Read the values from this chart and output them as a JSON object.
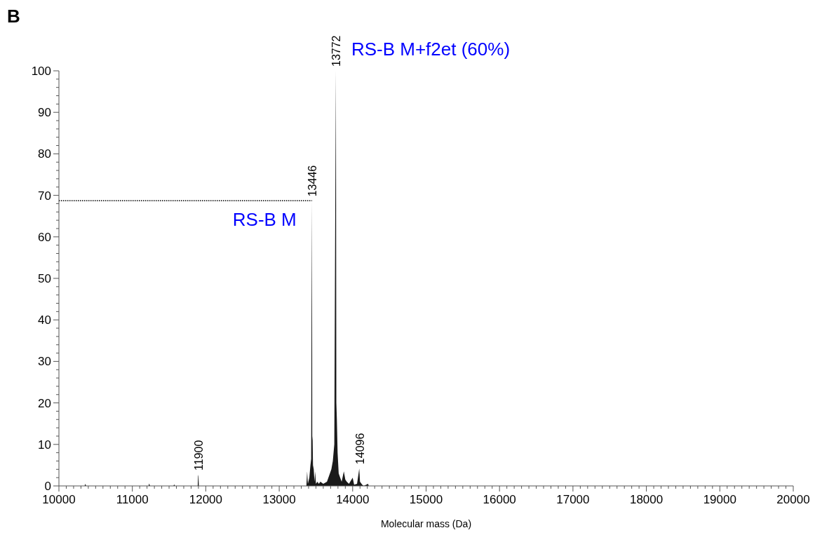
{
  "chart_data": {
    "type": "area",
    "title": "B",
    "xlabel": "Molecular mass (Da)",
    "xlim": [
      10000,
      20000
    ],
    "xticks": [
      10000,
      11000,
      12000,
      13000,
      14000,
      15000,
      16000,
      17000,
      18000,
      19000,
      20000
    ],
    "ylim": [
      0,
      100
    ],
    "yticks": [
      0,
      10,
      20,
      30,
      40,
      50,
      60,
      70,
      80,
      90,
      100
    ],
    "grid": false,
    "series": [
      {
        "color": "#1a1a1a",
        "x": [
          10000,
          10350,
          10360,
          10370,
          11220,
          11230,
          11240,
          11560,
          11570,
          11580,
          11890,
          11895,
          11900,
          11905,
          13370,
          13380,
          13390,
          13410,
          13425,
          13435,
          13440,
          13446,
          13450,
          13455,
          13460,
          13470,
          13480,
          13490,
          13500,
          13520,
          13540,
          13560,
          13600,
          13650,
          13690,
          13710,
          13730,
          13750,
          13765,
          13772,
          13778,
          13785,
          13795,
          13810,
          13830,
          13850,
          13880,
          13900,
          13920,
          13950,
          14000,
          14020,
          14060,
          14090,
          14100,
          14130,
          14150,
          14210,
          14220,
          20000
        ],
        "values": [
          0,
          0,
          0.5,
          0,
          0,
          0.6,
          0,
          0,
          0.4,
          0,
          0,
          2.3,
          2.7,
          0,
          0,
          3.5,
          0.5,
          2,
          5,
          6.5,
          41,
          68.7,
          12,
          11,
          5,
          4,
          1,
          3.5,
          0.5,
          1,
          0.5,
          1,
          0.5,
          1,
          3,
          4,
          6,
          10,
          75,
          100,
          20,
          16,
          8,
          3,
          2,
          1,
          3.5,
          1.5,
          1,
          0.5,
          2,
          0.3,
          0.5,
          4.2,
          1,
          0.3,
          0,
          0.5,
          0,
          0
        ]
      }
    ],
    "ref_lines": [
      {
        "axis": "y",
        "value": 68.7,
        "line_style": "dotted",
        "color": "#000000"
      }
    ],
    "annotations": [
      {
        "text": "13772",
        "x": 13772,
        "y": 100
      },
      {
        "text": "13446",
        "x": 13446,
        "y": 68.7
      },
      {
        "text": "11900",
        "x": 11900,
        "y": 2.7
      },
      {
        "text": "14096",
        "x": 14096,
        "y": 4.2
      },
      "RS-B M+f2et (60%)",
      "RS-B M"
    ]
  }
}
